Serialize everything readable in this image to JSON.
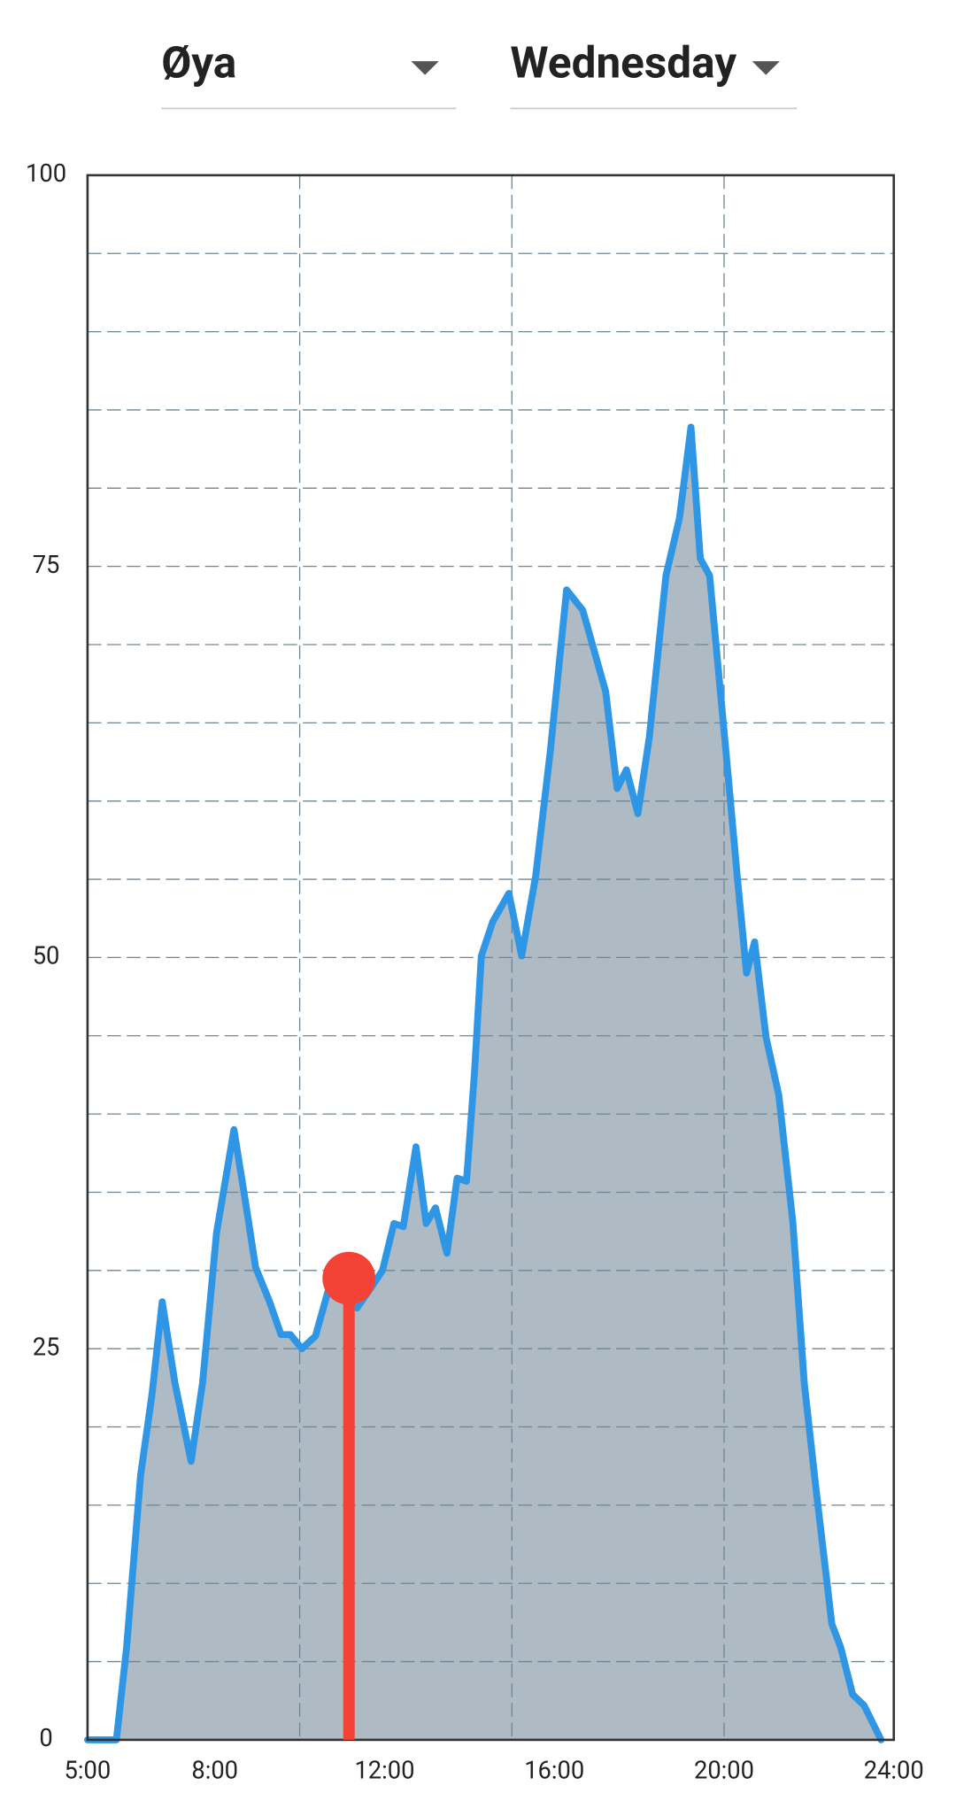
{
  "header": {
    "location": "Øya",
    "day": "Wednesday"
  },
  "chart_data": {
    "type": "area",
    "x": [
      5.0,
      5.52,
      5.68,
      5.92,
      6.25,
      6.52,
      6.76,
      7.06,
      7.44,
      7.71,
      8.04,
      8.45,
      8.75,
      8.96,
      9.29,
      9.56,
      9.78,
      10.05,
      10.37,
      10.67,
      11.03,
      11.35,
      11.68,
      11.95,
      12.22,
      12.44,
      12.74,
      12.98,
      13.2,
      13.47,
      13.71,
      13.93,
      14.12,
      14.28,
      14.55,
      14.93,
      15.23,
      15.56,
      15.91,
      16.29,
      16.67,
      17.21,
      17.48,
      17.7,
      17.97,
      18.24,
      18.63,
      18.95,
      19.22,
      19.44,
      19.66,
      20.04,
      20.31,
      20.53,
      20.72,
      20.99,
      21.29,
      21.62,
      21.89,
      22.16,
      22.54,
      22.75,
      23.03,
      23.3,
      23.7
    ],
    "series": [
      {
        "color": "#2f96e6",
        "fill": "#aebbc4",
        "values": [
          0,
          0,
          0,
          5.9,
          16.9,
          22.1,
          28,
          22.8,
          17.8,
          22.8,
          32.4,
          39,
          33.9,
          30.2,
          28,
          25.9,
          25.9,
          25,
          25.8,
          28.7,
          29.6,
          27.6,
          28.9,
          30,
          33,
          32.8,
          37.9,
          33,
          34,
          31.1,
          35.9,
          35.7,
          42.7,
          50.1,
          52.3,
          54.1,
          50.1,
          55.2,
          63.3,
          73.5,
          72.2,
          67,
          60.8,
          62,
          59.2,
          64.1,
          74.4,
          78.1,
          83.9,
          75.5,
          74.4,
          63.3,
          55.2,
          49,
          51,
          44.9,
          41.2,
          33.1,
          22.8,
          16.2,
          7.4,
          5.9,
          2.9,
          2.2,
          0
        ]
      }
    ],
    "marker": {
      "x": 11.16,
      "value": 29.5,
      "color": "#f44336"
    },
    "xlim": [
      5,
      24
    ],
    "ylim": [
      0,
      100
    ],
    "xticks": [
      {
        "value": 5,
        "label": "5:00"
      },
      {
        "value": 8,
        "label": "8:00"
      },
      {
        "value": 12,
        "label": "12:00"
      },
      {
        "value": 16,
        "label": "16:00"
      },
      {
        "value": 20,
        "label": "20:00"
      },
      {
        "value": 24,
        "label": "24:00"
      }
    ],
    "yticks": [
      0,
      25,
      50,
      75,
      100
    ],
    "xgrid": [
      10,
      15,
      20
    ],
    "ygrid": [
      5,
      10,
      15,
      20,
      25,
      30,
      35,
      40,
      45,
      50,
      55,
      60,
      65,
      70,
      75,
      80,
      85,
      90,
      95
    ],
    "grid": true
  }
}
